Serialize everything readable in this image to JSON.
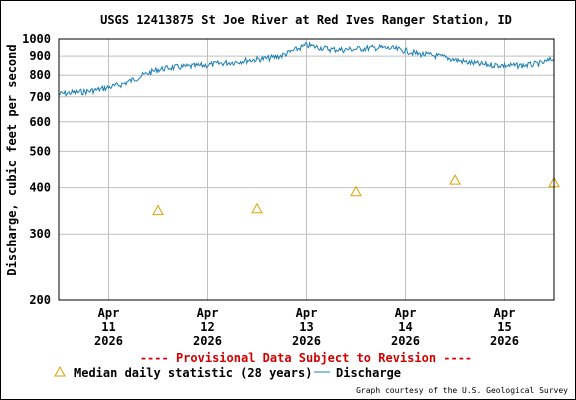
{
  "chart_data": {
    "type": "line",
    "title": "USGS 12413875 St Joe River at Red Ives Ranger Station, ID",
    "ylabel": "Discharge, cubic feet per second",
    "xlabel": "",
    "y_scale": "log",
    "ylim": [
      200,
      1000
    ],
    "xlim": [
      "2026-04-10T12:00",
      "2026-04-15T12:00"
    ],
    "y_ticks": [
      200,
      300,
      400,
      500,
      600,
      700,
      800,
      900,
      1000
    ],
    "y_tick_labels": [
      "200",
      "300",
      "400",
      "500",
      "600",
      "700",
      "800",
      "900",
      "1000"
    ],
    "x_ticks": [
      {
        "month": "Apr",
        "day": "11",
        "year": "2026"
      },
      {
        "month": "Apr",
        "day": "12",
        "year": "2026"
      },
      {
        "month": "Apr",
        "day": "13",
        "year": "2026"
      },
      {
        "month": "Apr",
        "day": "14",
        "year": "2026"
      },
      {
        "month": "Apr",
        "day": "15",
        "year": "2026"
      }
    ],
    "grid": true,
    "series": [
      {
        "name": "Discharge",
        "color": "#1a7fb5",
        "x": [
          "2026-04-10T12:00",
          "2026-04-10T15:00",
          "2026-04-10T18:00",
          "2026-04-10T21:00",
          "2026-04-11T00:00",
          "2026-04-11T03:00",
          "2026-04-11T06:00",
          "2026-04-11T09:00",
          "2026-04-11T12:00",
          "2026-04-11T15:00",
          "2026-04-11T18:00",
          "2026-04-11T21:00",
          "2026-04-12T00:00",
          "2026-04-12T03:00",
          "2026-04-12T06:00",
          "2026-04-12T09:00",
          "2026-04-12T12:00",
          "2026-04-12T15:00",
          "2026-04-12T18:00",
          "2026-04-12T21:00",
          "2026-04-13T00:00",
          "2026-04-13T03:00",
          "2026-04-13T06:00",
          "2026-04-13T09:00",
          "2026-04-13T12:00",
          "2026-04-13T15:00",
          "2026-04-13T18:00",
          "2026-04-13T21:00",
          "2026-04-14T00:00",
          "2026-04-14T03:00",
          "2026-04-14T06:00",
          "2026-04-14T09:00",
          "2026-04-14T12:00",
          "2026-04-14T15:00",
          "2026-04-14T18:00",
          "2026-04-14T21:00",
          "2026-04-15T00:00",
          "2026-04-15T03:00",
          "2026-04-15T06:00",
          "2026-04-15T09:00",
          "2026-04-15T12:00"
        ],
        "values": [
          712,
          718,
          722,
          730,
          742,
          755,
          778,
          805,
          828,
          838,
          842,
          846,
          852,
          860,
          866,
          875,
          882,
          888,
          902,
          932,
          962,
          950,
          938,
          936,
          940,
          945,
          948,
          942,
          930,
          912,
          905,
          895,
          880,
          866,
          856,
          852,
          850,
          848,
          852,
          860,
          886
        ]
      },
      {
        "name": "Median daily statistic (28 years)",
        "color": "#e0a000",
        "marker": "triangle",
        "x": [
          "2026-04-11",
          "2026-04-12",
          "2026-04-13",
          "2026-04-14",
          "2026-04-15"
        ],
        "values": [
          347,
          351,
          390,
          419,
          412
        ]
      }
    ],
    "legend": [
      {
        "marker": "triangle",
        "label": "Median daily statistic (28 years)"
      },
      {
        "marker": "line",
        "label": "Discharge"
      }
    ],
    "legend_placement": "bottom",
    "annotations": {
      "provisional": "---- Provisional Data Subject to Revision ----",
      "credit": "Graph courtesy of the U.S. Geological Survey"
    }
  },
  "colors": {
    "discharge": "#1a7fb5",
    "median": "#e0a000",
    "provisional": "#d40000",
    "grid": "#c0c0c0",
    "frame": "#000000"
  }
}
